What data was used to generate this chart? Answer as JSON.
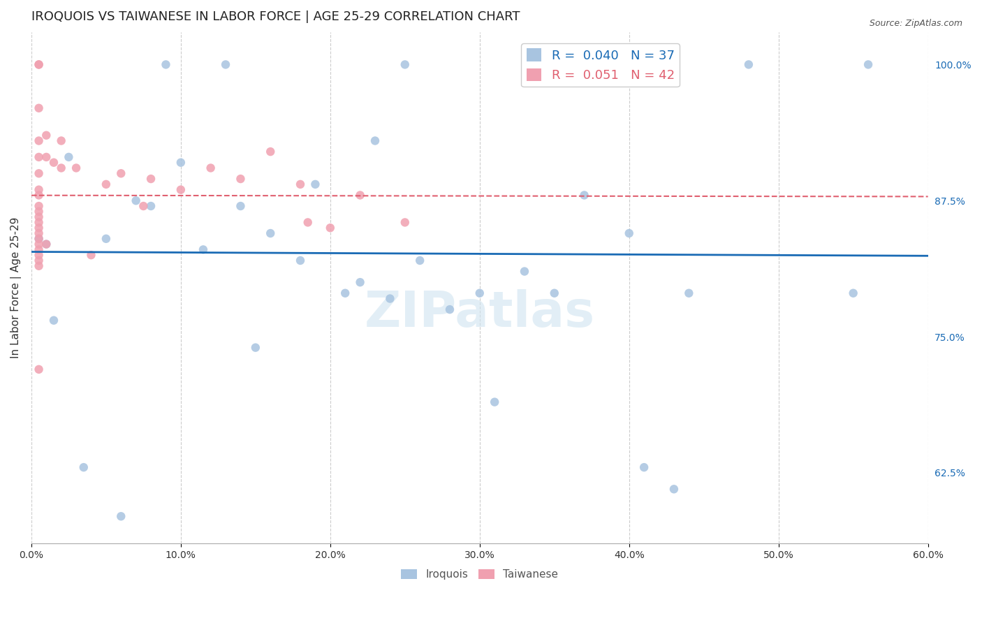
{
  "title": "IROQUOIS VS TAIWANESE IN LABOR FORCE | AGE 25-29 CORRELATION CHART",
  "source": "Source: ZipAtlas.com",
  "ylabel": "In Labor Force | Age 25-29",
  "x_tick_labels": [
    "0.0%",
    "10.0%",
    "20.0%",
    "30.0%",
    "40.0%",
    "50.0%",
    "60.0%"
  ],
  "x_tick_vals": [
    0.0,
    10.0,
    20.0,
    30.0,
    40.0,
    50.0,
    60.0
  ],
  "y_tick_labels": [
    "100.0%",
    "87.5%",
    "75.0%",
    "62.5%"
  ],
  "y_tick_vals": [
    100.0,
    87.5,
    75.0,
    62.5
  ],
  "xlim": [
    0.0,
    60.0
  ],
  "ylim": [
    56.0,
    103.0
  ],
  "iroquois_color": "#a8c4e0",
  "taiwanese_color": "#f0a0b0",
  "iroquois_R": 0.04,
  "iroquois_N": 37,
  "taiwanese_R": 0.051,
  "taiwanese_N": 42,
  "trend_blue_color": "#1a6bb5",
  "trend_pink_color": "#e06070",
  "watermark": "ZIPatlas",
  "iroquois_x": [
    0.5,
    1.0,
    2.5,
    5.0,
    7.0,
    8.0,
    10.0,
    11.5,
    13.0,
    14.0,
    16.0,
    18.0,
    19.0,
    21.0,
    22.0,
    23.0,
    25.0,
    26.0,
    28.0,
    30.0,
    33.0,
    35.0,
    37.0,
    40.0,
    41.0,
    43.0,
    1.5,
    3.5,
    6.0,
    9.0,
    15.0,
    24.0,
    31.0,
    44.0,
    55.0,
    56.0,
    48.0
  ],
  "iroquois_y": [
    84.0,
    83.5,
    91.5,
    84.0,
    87.5,
    87.0,
    91.0,
    83.0,
    100.0,
    87.0,
    84.5,
    82.0,
    89.0,
    79.0,
    80.0,
    93.0,
    100.0,
    82.0,
    77.5,
    79.0,
    81.0,
    79.0,
    88.0,
    84.5,
    63.0,
    61.0,
    76.5,
    63.0,
    58.5,
    100.0,
    74.0,
    78.5,
    69.0,
    79.0,
    79.0,
    100.0,
    100.0
  ],
  "taiwanese_x": [
    0.5,
    0.5,
    0.5,
    0.5,
    0.5,
    0.5,
    0.5,
    0.5,
    0.5,
    0.5,
    0.5,
    0.5,
    0.5,
    0.5,
    0.5,
    0.5,
    0.5,
    0.5,
    0.5,
    0.5,
    1.0,
    1.0,
    1.0,
    1.5,
    2.0,
    2.0,
    3.0,
    4.0,
    5.0,
    6.0,
    7.5,
    8.0,
    10.0,
    12.0,
    14.0,
    16.0,
    18.0,
    18.5,
    20.0,
    22.0,
    25.0,
    0.5
  ],
  "taiwanese_y": [
    100.0,
    100.0,
    96.0,
    93.0,
    91.5,
    90.0,
    88.5,
    88.0,
    87.0,
    86.5,
    86.0,
    85.5,
    85.0,
    84.5,
    84.0,
    83.5,
    83.0,
    82.5,
    82.0,
    81.5,
    93.5,
    91.5,
    83.5,
    91.0,
    93.0,
    90.5,
    90.5,
    82.5,
    89.0,
    90.0,
    87.0,
    89.5,
    88.5,
    90.5,
    89.5,
    92.0,
    89.0,
    85.5,
    85.0,
    88.0,
    85.5,
    72.0
  ],
  "grid_color": "#cccccc",
  "background_color": "#ffffff",
  "title_fontsize": 13,
  "axis_label_fontsize": 11,
  "tick_fontsize": 10,
  "legend_fontsize": 13,
  "source_fontsize": 9,
  "marker_size": 80
}
